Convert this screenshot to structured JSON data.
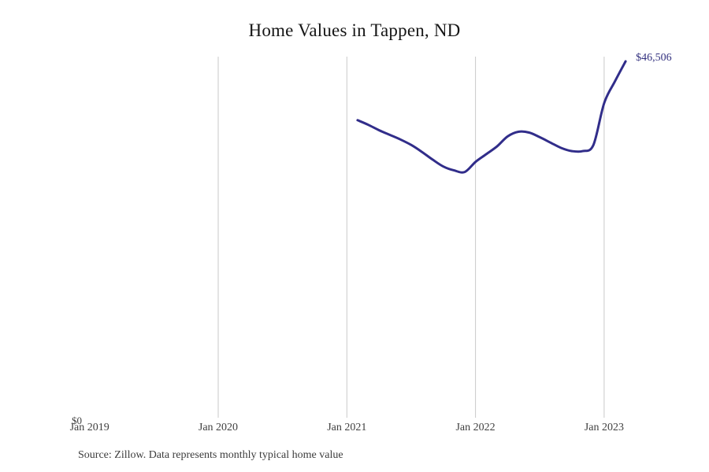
{
  "page": {
    "background": "#ffffff"
  },
  "chart_data": {
    "type": "line",
    "title": "Home Values in Tappen, ND",
    "source_note": "Source: Zillow. Data represents monthly typical home value",
    "y_zero_label": "$0",
    "end_value_label": "$46,506",
    "x_tick_labels": [
      "Jan 2019",
      "Jan 2020",
      "Jan 2021",
      "Jan 2022",
      "Jan 2023"
    ],
    "x_range": [
      "Jan 2019",
      "Apr 2023"
    ],
    "ylim": [
      0,
      47120
    ],
    "grid": "vertical-only",
    "legend": "none",
    "line_color": "#312d8a",
    "grid_color": "#c9c9c9",
    "label_color": "#3f3f3f",
    "value_label_color": "#33317f",
    "series": [
      {
        "name": "Typical home value",
        "points": [
          {
            "date": "Feb 2021",
            "value": 38900
          },
          {
            "date": "Mar 2021",
            "value": 38300
          },
          {
            "date": "Apr 2021",
            "value": 37600
          },
          {
            "date": "May 2021",
            "value": 37000
          },
          {
            "date": "Jun 2021",
            "value": 36400
          },
          {
            "date": "Jul 2021",
            "value": 35700
          },
          {
            "date": "Aug 2021",
            "value": 34800
          },
          {
            "date": "Sep 2021",
            "value": 33800
          },
          {
            "date": "Oct 2021",
            "value": 32900
          },
          {
            "date": "Nov 2021",
            "value": 32400
          },
          {
            "date": "Dec 2021",
            "value": 32200
          },
          {
            "date": "Jan 2022",
            "value": 33500
          },
          {
            "date": "Feb 2022",
            "value": 34500
          },
          {
            "date": "Mar 2022",
            "value": 35500
          },
          {
            "date": "Apr 2022",
            "value": 36800
          },
          {
            "date": "May 2022",
            "value": 37400
          },
          {
            "date": "Jun 2022",
            "value": 37300
          },
          {
            "date": "Jul 2022",
            "value": 36700
          },
          {
            "date": "Aug 2022",
            "value": 36000
          },
          {
            "date": "Sep 2022",
            "value": 35300
          },
          {
            "date": "Oct 2022",
            "value": 34900
          },
          {
            "date": "Nov 2022",
            "value": 34900
          },
          {
            "date": "Dec 2022",
            "value": 35700
          },
          {
            "date": "Jan 2023",
            "value": 41100
          },
          {
            "date": "Feb 2023",
            "value": 43900
          },
          {
            "date": "Mar 2023",
            "value": 46506
          }
        ]
      }
    ]
  }
}
